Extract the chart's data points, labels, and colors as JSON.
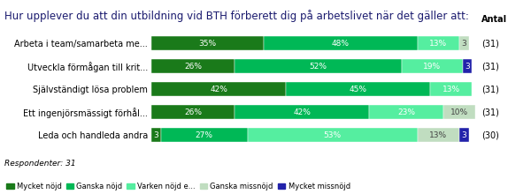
{
  "title": "Hur upplever du att din utbildning vid BTH förberett dig på arbetslivet när det gäller att:",
  "categories": [
    "Arbeta i team/samarbeta me...",
    "Utveckla förmågan till krit...",
    "Självständigt lösa problem",
    "Ett ingenjörsmässigt förhål...",
    "Leda och handleda andra"
  ],
  "counts": [
    "(31)",
    "(31)",
    "(31)",
    "(31)",
    "(30)"
  ],
  "segments": [
    [
      35,
      48,
      13,
      3,
      0
    ],
    [
      26,
      52,
      19,
      0,
      3
    ],
    [
      42,
      45,
      13,
      0,
      0
    ],
    [
      26,
      42,
      23,
      10,
      0
    ],
    [
      3,
      27,
      53,
      13,
      3
    ]
  ],
  "segment_labels": [
    [
      "35%",
      "48%",
      "13%",
      "3",
      ""
    ],
    [
      "26%",
      "52%",
      "19%",
      "",
      "3"
    ],
    [
      "42%",
      "45%",
      "13%",
      "",
      ""
    ],
    [
      "26%",
      "42%",
      "23%",
      "10%",
      ""
    ],
    [
      "3",
      "27%",
      "53%",
      "13%",
      "3"
    ]
  ],
  "colors": [
    "#1a7a1a",
    "#00b856",
    "#55eea0",
    "#c0ddc0",
    "#2222aa"
  ],
  "legend_labels": [
    "Mycket nöjd",
    "Ganska nöjd",
    "Varken nöjd e...",
    "Ganska missnöjd",
    "Mycket missnöjd"
  ],
  "title_bg": "#cdd4e0",
  "chart_bg": "#f0f0f0",
  "bar_bg": "#ffffff",
  "respondent_text": "Respondenter: 31",
  "antal_label": "Antal",
  "title_color": "#1a1a6e",
  "title_fontsize": 8.5
}
